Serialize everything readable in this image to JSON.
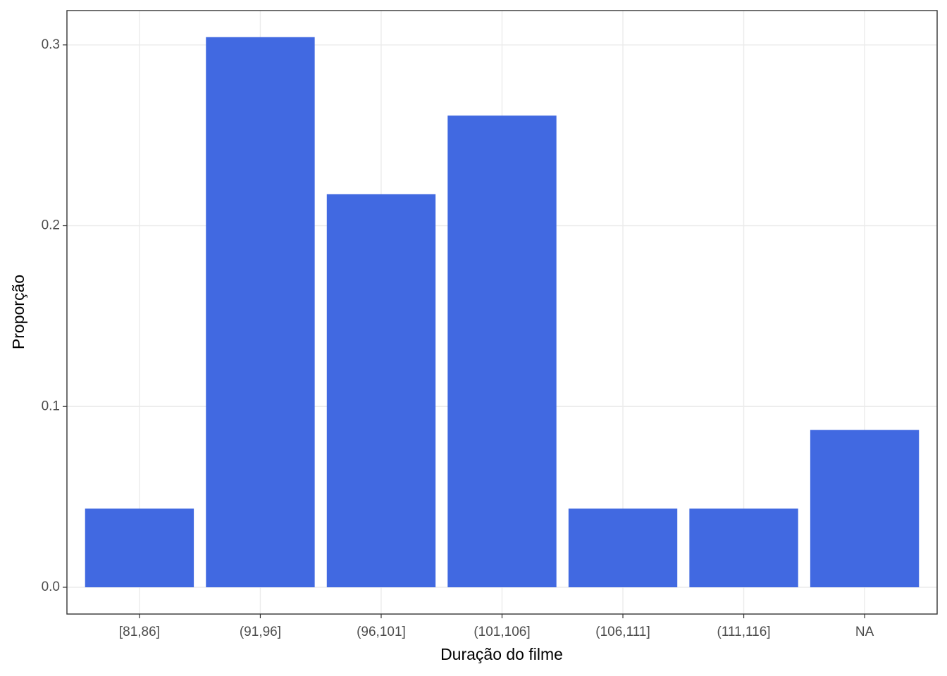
{
  "chart_data": {
    "type": "bar",
    "x_label": "Duração do filme",
    "y_label": "Proporção",
    "categories": [
      "[81,86]",
      "(91,96]",
      "(96,101]",
      "(101,106]",
      "(106,111]",
      "(111,116]",
      "NA"
    ],
    "values": [
      0.0435,
      0.3043,
      0.2174,
      0.2609,
      0.0435,
      0.0435,
      0.087
    ],
    "color": "#4169e1",
    "ylim": [
      -0.0148,
      0.319
    ],
    "yticks": [
      {
        "value": 0,
        "label": "0.0"
      },
      {
        "value": 0.1,
        "label": "0.1"
      },
      {
        "value": 0.2,
        "label": "0.2"
      },
      {
        "value": 0.3,
        "label": "0.3"
      }
    ],
    "grid": true
  }
}
